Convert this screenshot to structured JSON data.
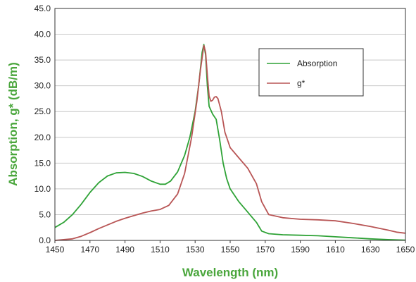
{
  "colors": {
    "accent": "#4aa63c",
    "absorption": "#2ea236",
    "g_star": "#b85555",
    "grid": "#c8c8c8",
    "axis": "#333333"
  },
  "chart_data": {
    "type": "line",
    "xlabel": "Wavelength (nm)",
    "ylabel": "Absorption, g* (dB/m)",
    "xlim": [
      1450,
      1650
    ],
    "ylim": [
      0,
      45
    ],
    "x_ticks": [
      "1450",
      "1470",
      "1490",
      "1510",
      "1530",
      "1550",
      "1570",
      "1590",
      "1610",
      "1630",
      "1650"
    ],
    "y_ticks": [
      "0.0",
      "5.0",
      "10.0",
      "15.0",
      "20.0",
      "25.0",
      "30.0",
      "35.0",
      "40.0",
      "45.0"
    ],
    "grid": "horizontal",
    "legend_position": "top-right",
    "series": [
      {
        "name": "Absorption",
        "color": "#2ea236",
        "points": [
          [
            1450,
            2.5
          ],
          [
            1455,
            3.5
          ],
          [
            1460,
            5.0
          ],
          [
            1465,
            7.0
          ],
          [
            1470,
            9.3
          ],
          [
            1475,
            11.2
          ],
          [
            1480,
            12.5
          ],
          [
            1485,
            13.1
          ],
          [
            1490,
            13.2
          ],
          [
            1495,
            13.0
          ],
          [
            1500,
            12.4
          ],
          [
            1505,
            11.5
          ],
          [
            1510,
            10.9
          ],
          [
            1513,
            10.9
          ],
          [
            1516,
            11.5
          ],
          [
            1520,
            13.3
          ],
          [
            1524,
            16.5
          ],
          [
            1527,
            20.0
          ],
          [
            1530,
            25.0
          ],
          [
            1532,
            30.0
          ],
          [
            1534,
            36.5
          ],
          [
            1535,
            38.0
          ],
          [
            1536,
            36.0
          ],
          [
            1537,
            30.0
          ],
          [
            1538,
            26.0
          ],
          [
            1540,
            24.5
          ],
          [
            1542,
            23.5
          ],
          [
            1544,
            19.5
          ],
          [
            1546,
            15.0
          ],
          [
            1548,
            12.0
          ],
          [
            1550,
            10.0
          ],
          [
            1555,
            7.5
          ],
          [
            1560,
            5.5
          ],
          [
            1565,
            3.5
          ],
          [
            1568,
            1.8
          ],
          [
            1572,
            1.3
          ],
          [
            1580,
            1.1
          ],
          [
            1590,
            1.0
          ],
          [
            1600,
            0.9
          ],
          [
            1610,
            0.7
          ],
          [
            1620,
            0.5
          ],
          [
            1630,
            0.3
          ],
          [
            1640,
            0.15
          ],
          [
            1650,
            0.05
          ]
        ]
      },
      {
        "name": "g*",
        "color": "#b85555",
        "points": [
          [
            1450,
            0.0
          ],
          [
            1460,
            0.3
          ],
          [
            1465,
            0.8
          ],
          [
            1470,
            1.5
          ],
          [
            1475,
            2.3
          ],
          [
            1480,
            3.0
          ],
          [
            1485,
            3.7
          ],
          [
            1490,
            4.3
          ],
          [
            1495,
            4.8
          ],
          [
            1500,
            5.3
          ],
          [
            1505,
            5.7
          ],
          [
            1510,
            6.0
          ],
          [
            1515,
            6.8
          ],
          [
            1520,
            9.0
          ],
          [
            1524,
            13.0
          ],
          [
            1528,
            20.0
          ],
          [
            1531,
            27.0
          ],
          [
            1533,
            33.0
          ],
          [
            1535,
            37.8
          ],
          [
            1536,
            36.5
          ],
          [
            1537,
            32.0
          ],
          [
            1538,
            28.0
          ],
          [
            1539,
            27.0
          ],
          [
            1540,
            27.2
          ],
          [
            1541,
            27.8
          ],
          [
            1542,
            27.9
          ],
          [
            1543,
            27.5
          ],
          [
            1545,
            25.0
          ],
          [
            1547,
            21.0
          ],
          [
            1550,
            18.0
          ],
          [
            1555,
            16.0
          ],
          [
            1560,
            14.0
          ],
          [
            1565,
            11.0
          ],
          [
            1568,
            7.5
          ],
          [
            1572,
            5.0
          ],
          [
            1580,
            4.4
          ],
          [
            1590,
            4.1
          ],
          [
            1600,
            4.0
          ],
          [
            1610,
            3.8
          ],
          [
            1620,
            3.3
          ],
          [
            1630,
            2.7
          ],
          [
            1640,
            2.0
          ],
          [
            1645,
            1.6
          ],
          [
            1650,
            1.4
          ]
        ]
      }
    ]
  }
}
